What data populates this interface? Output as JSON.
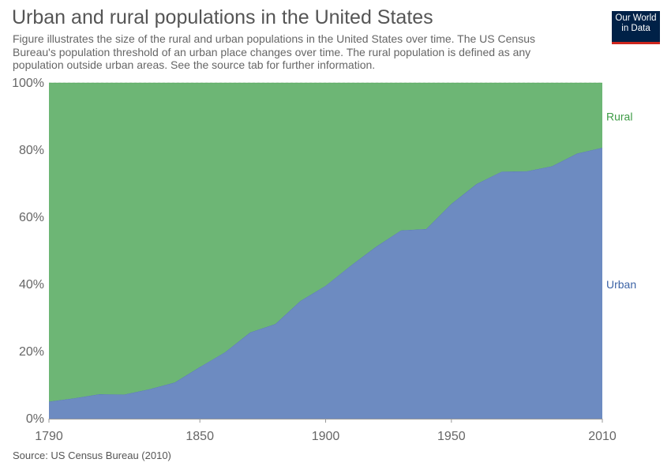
{
  "title": "Urban and rural populations in the United States",
  "subtitle": "Figure illustrates the size of the rural and urban populations in the United States over time. The US Census Bureau's population threshold of an urban place changes over time. The rural population is defined as any population outside urban areas. See the source tab for further information.",
  "logo": {
    "line1": "Our World",
    "line2": "in Data"
  },
  "source": "Source: US Census Bureau (2010)",
  "colors": {
    "urban": "#6d8bc1",
    "rural": "#6db675",
    "urban_label": "#3d64a6",
    "rural_label": "#3d9b45"
  },
  "chart_data": {
    "type": "area",
    "stacked": true,
    "x": [
      1790,
      1800,
      1810,
      1820,
      1830,
      1840,
      1850,
      1860,
      1870,
      1880,
      1890,
      1900,
      1910,
      1920,
      1930,
      1940,
      1950,
      1960,
      1970,
      1980,
      1990,
      2000,
      2010
    ],
    "series": [
      {
        "name": "Urban",
        "values": [
          5.1,
          6.1,
          7.3,
          7.2,
          8.8,
          10.8,
          15.4,
          19.8,
          25.7,
          28.2,
          35.1,
          39.6,
          45.6,
          51.2,
          56.1,
          56.5,
          64.0,
          69.9,
          73.6,
          73.7,
          75.2,
          79.0,
          80.7
        ]
      },
      {
        "name": "Rural",
        "values": [
          94.9,
          93.9,
          92.7,
          92.8,
          91.2,
          89.2,
          84.6,
          80.2,
          74.3,
          71.8,
          64.9,
          60.4,
          54.4,
          48.8,
          43.9,
          43.5,
          36.0,
          30.1,
          26.4,
          26.3,
          24.8,
          21.0,
          19.3
        ]
      }
    ],
    "ylim": [
      0,
      100
    ],
    "yticks": [
      "0%",
      "20%",
      "40%",
      "60%",
      "80%",
      "100%"
    ],
    "xticks": [
      "1790",
      "1850",
      "1900",
      "1950",
      "2010"
    ],
    "grid": true,
    "legend": "right, inline labels"
  }
}
